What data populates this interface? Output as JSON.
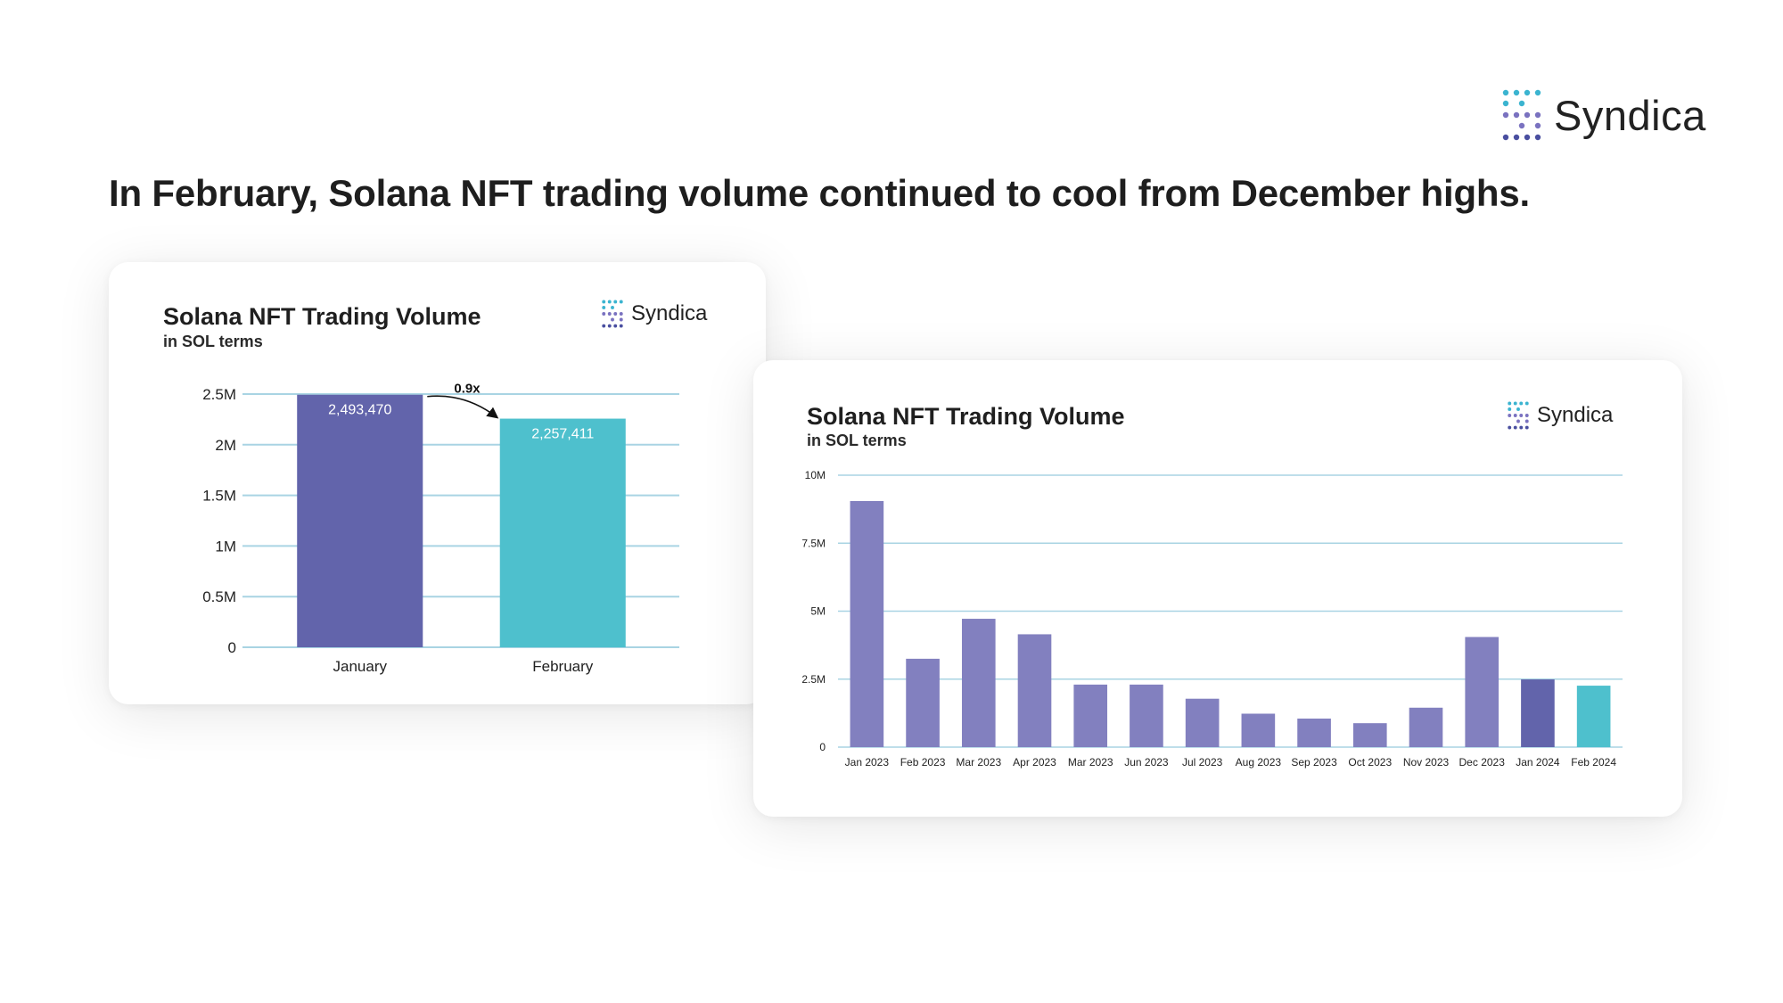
{
  "brand": {
    "name": "Syndica"
  },
  "headline": "In February, Solana NFT trading volume continued to cool from December highs.",
  "colors": {
    "purple": "#8280bf",
    "purple_dark": "#6264ab",
    "teal": "#4ec0cd",
    "grid": "#a9d4e3"
  },
  "chart_data": [
    {
      "type": "bar",
      "title": "Solana NFT Trading Volume",
      "subtitle": "in SOL terms",
      "categories": [
        "January",
        "February"
      ],
      "values": [
        2493470,
        2257411
      ],
      "data_labels": [
        "2,493,470",
        "2,257,411"
      ],
      "bar_colors": [
        "#6264ab",
        "#4ec0cd"
      ],
      "yticks": [
        0,
        500000,
        1000000,
        1500000,
        2000000,
        2500000
      ],
      "ytick_labels": [
        "0",
        "0.5M",
        "1M",
        "1.5M",
        "2M",
        "2.5M"
      ],
      "ylim": [
        0,
        2500000
      ],
      "annotation": "0.9x",
      "grid": true
    },
    {
      "type": "bar",
      "title": "Solana NFT Trading Volume",
      "subtitle": "in SOL terms",
      "categories": [
        "Jan 2023",
        "Feb 2023",
        "Mar 2023",
        "Apr 2023",
        "Mar 2023",
        "Jun 2023",
        "Jul 2023",
        "Aug 2023",
        "Sep 2023",
        "Oct 2023",
        "Nov 2023",
        "Dec 2023",
        "Jan 2024",
        "Feb 2024"
      ],
      "values": [
        9050000,
        3250000,
        4720000,
        4150000,
        2300000,
        2300000,
        1780000,
        1230000,
        1050000,
        880000,
        1450000,
        4050000,
        2490000,
        2260000
      ],
      "bar_colors": [
        "#8280bf",
        "#8280bf",
        "#8280bf",
        "#8280bf",
        "#8280bf",
        "#8280bf",
        "#8280bf",
        "#8280bf",
        "#8280bf",
        "#8280bf",
        "#8280bf",
        "#8280bf",
        "#6264ab",
        "#4ec0cd"
      ],
      "yticks": [
        0,
        2500000,
        5000000,
        7500000,
        10000000
      ],
      "ytick_labels": [
        "0",
        "2.5M",
        "5M",
        "7.5M",
        "10M"
      ],
      "ylim": [
        0,
        10000000
      ],
      "grid": true
    }
  ]
}
